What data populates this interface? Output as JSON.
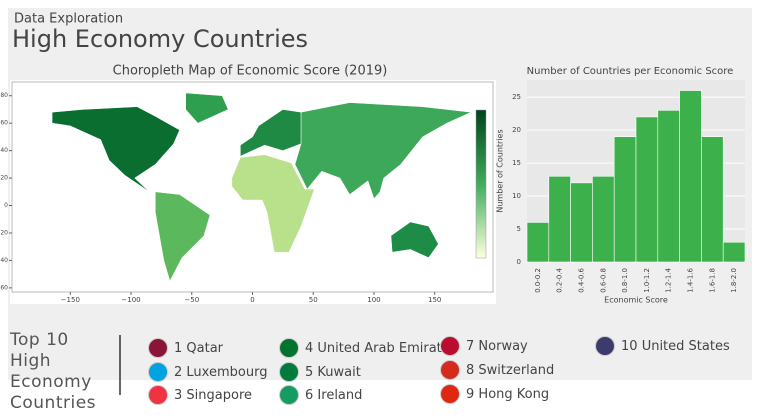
{
  "header": {
    "subtitle": "Data Exploration",
    "title": "High Economy Countries"
  },
  "chart_data": [
    {
      "type": "choropleth",
      "title": "Choropleth Map of Economic Score (2019)",
      "xlim": [
        -198,
        198
      ],
      "ylim": [
        -63,
        90
      ],
      "xticks": [
        {
          "value": -150,
          "label": "−150"
        },
        {
          "value": -100,
          "label": "−100"
        },
        {
          "value": -50,
          "label": "−50"
        },
        0,
        50,
        100,
        150
      ],
      "yticks": [
        80,
        60,
        40,
        20,
        0,
        {
          "value": -20,
          "label": "−20"
        },
        {
          "value": -40,
          "label": "−40"
        },
        {
          "value": -60,
          "label": "−60"
        }
      ]
    },
    {
      "type": "bar",
      "title": "Number of Countries per Economic Score",
      "x_label": "Economic Score",
      "y_label": "Number of Countries",
      "categories": [
        "0.0-0.2",
        "0.2-0.4",
        "0.4-0.6",
        "0.6-0.8",
        "0.8-1.0",
        "1.0-1.2",
        "1.2-1.4",
        "1.4-1.6",
        "1.6-1.8",
        "1.8-2.0"
      ],
      "values": [
        6,
        13,
        12,
        13,
        19,
        22,
        23,
        26,
        19,
        3
      ],
      "color": "#3cb04b",
      "ylim": [
        0,
        27.6
      ],
      "yticks": [
        0,
        5,
        10,
        15,
        20,
        25
      ],
      "grid": true
    }
  ],
  "top_countries": {
    "title": "Top 10 High Economy Countries",
    "items": [
      {
        "rank": 1,
        "name": "Qatar"
      },
      {
        "rank": 2,
        "name": "Luxembourg"
      },
      {
        "rank": 3,
        "name": "Singapore"
      },
      {
        "rank": 4,
        "name": "United Arab Emirates"
      },
      {
        "rank": 5,
        "name": "Kuwait"
      },
      {
        "rank": 6,
        "name": "Ireland"
      },
      {
        "rank": 7,
        "name": "Norway"
      },
      {
        "rank": 8,
        "name": "Switzerland"
      },
      {
        "rank": 9,
        "name": "Hong Kong"
      },
      {
        "rank": 10,
        "name": "United States"
      }
    ]
  }
}
